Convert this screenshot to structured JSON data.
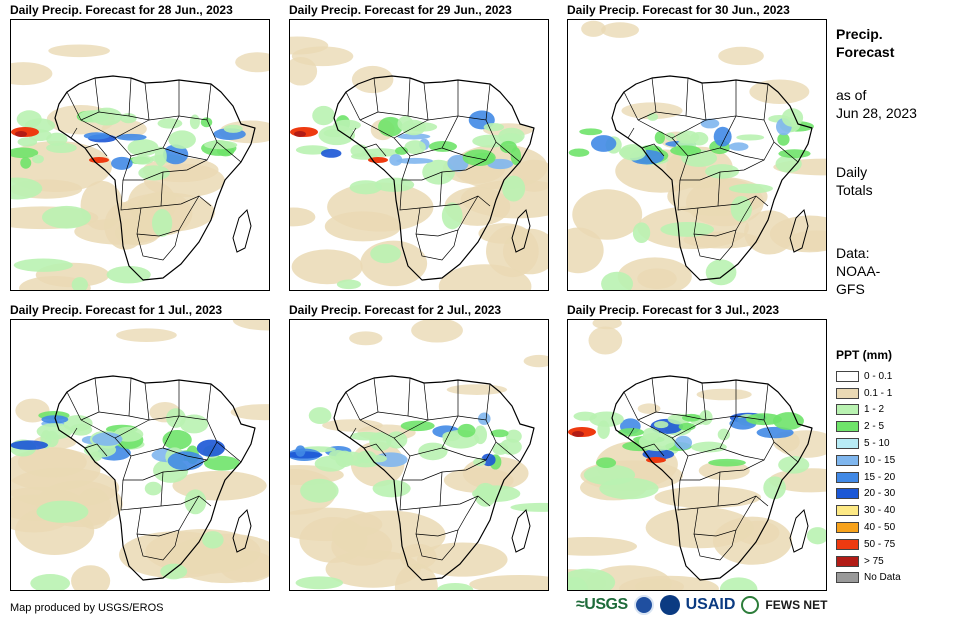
{
  "panels": [
    {
      "title": "Daily Precip. Forecast for 28 Jun., 2023"
    },
    {
      "title": "Daily Precip. Forecast for 29 Jun., 2023"
    },
    {
      "title": "Daily Precip. Forecast for 30 Jun., 2023"
    },
    {
      "title": "Daily Precip. Forecast for 1 Jul., 2023"
    },
    {
      "title": "Daily Precip. Forecast for 2 Jul., 2023"
    },
    {
      "title": "Daily Precip. Forecast for 3 Jul., 2023"
    }
  ],
  "sidebar": {
    "title_line1": "Precip.",
    "title_line2": "Forecast",
    "asof_line1": "as of",
    "asof_line2": "Jun 28, 2023",
    "totals_line1": "Daily",
    "totals_line2": "Totals",
    "source_line1": "Data:",
    "source_line2": "NOAA-",
    "source_line3": "GFS"
  },
  "legend": {
    "title": "PPT (mm)",
    "items": [
      {
        "label": "0 - 0.1",
        "color": "#ffffff"
      },
      {
        "label": "0.1 - 1",
        "color": "#ead9b4"
      },
      {
        "label": "1 - 2",
        "color": "#b9f2b1"
      },
      {
        "label": "2 - 5",
        "color": "#6fe36a"
      },
      {
        "label": "5 - 10",
        "color": "#b8ecf6"
      },
      {
        "label": "10 - 15",
        "color": "#7fb6ee"
      },
      {
        "label": "15 - 20",
        "color": "#4189e6"
      },
      {
        "label": "20 - 30",
        "color": "#1b57d6"
      },
      {
        "label": "30 - 40",
        "color": "#fde985"
      },
      {
        "label": "40 - 50",
        "color": "#f7a21b"
      },
      {
        "label": "50 - 75",
        "color": "#ee3a10"
      },
      {
        "label": "> 75",
        "color": "#b21c16"
      },
      {
        "label": "No Data",
        "color": "#999999"
      }
    ]
  },
  "footer": {
    "credit": "Map produced by USGS/EROS",
    "logos": {
      "usgs": "≈USGS",
      "usaid": "USAID",
      "fews": "FEWS NET"
    }
  }
}
